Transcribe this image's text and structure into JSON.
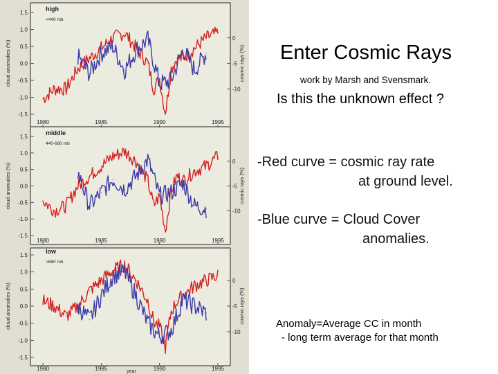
{
  "slide": {
    "title": "Enter Cosmic Rays",
    "credit": "work by Marsh and Svensmark.",
    "question": "Is this the unknown effect ?",
    "red_bullet": {
      "line1": "-Red curve = cosmic ray rate",
      "line2": "at ground level."
    },
    "blue_bullet": {
      "line1": "-Blue curve = Cloud Cover",
      "line2": "anomalies."
    },
    "note": {
      "line1": "Anomaly=Average CC in month",
      "line2": "- long term average for that month"
    }
  },
  "colors": {
    "cloud_series": "#3a3aa8",
    "cosmic_series": "#d42020",
    "panel_bg": "#ecebe0",
    "figure_bg": "#e1dfd1"
  },
  "chart_data": [
    {
      "type": "line",
      "panel": "high",
      "level": "<440 mb",
      "x_ticks": [
        "1980",
        "1985",
        "1990",
        "1995"
      ],
      "xlim": [
        1980,
        1995
      ],
      "ylabel": "cloud anomalies (%)",
      "y_ticks": [
        "1.5",
        "1.0",
        "0.5",
        "0.0",
        "-0.5",
        "-1.0",
        "-1.5"
      ],
      "ylim": [
        -1.5,
        1.5
      ],
      "y2label": "cosmic rays (%)",
      "y2_ticks": [
        "0",
        "-5",
        "-10"
      ],
      "y2lim": [
        -15,
        5
      ],
      "series": [
        {
          "axis": "right",
          "x": [
            1980,
            1981,
            1982,
            1983,
            1984,
            1985,
            1986,
            1987,
            1988,
            1989,
            1989.5,
            1990,
            1990.5,
            1991,
            1991.5,
            1992,
            1993,
            1994,
            1995
          ],
          "values": [
            -12,
            -10,
            -10,
            -6,
            -4,
            -2,
            0,
            1,
            -2,
            -5,
            -10,
            -8,
            -15,
            -6,
            -4,
            -4,
            -2,
            0,
            1
          ]
        },
        {
          "axis": "left",
          "x": [
            1983,
            1984,
            1985,
            1986,
            1987,
            1988,
            1989,
            1990,
            1991,
            1992,
            1993,
            1994
          ],
          "values": [
            0.2,
            -0.3,
            0.3,
            0.5,
            -0.2,
            0.4,
            0.7,
            -0.6,
            -0.5,
            0.4,
            -0.2,
            0.3
          ]
        }
      ]
    },
    {
      "type": "line",
      "panel": "middle",
      "level": "440-680 mb",
      "x_ticks": [
        "1980",
        "1985",
        "1990",
        "1995"
      ],
      "xlim": [
        1980,
        1995
      ],
      "ylabel": "cloud anomalies (%)",
      "y_ticks": [
        "1.5",
        "1.0",
        "0.5",
        "0.0",
        "-0.5",
        "-1.0",
        "-1.5"
      ],
      "ylim": [
        -1.5,
        1.5
      ],
      "y2label": "cosmic rays (%)",
      "y2_ticks": [
        "0",
        "-5",
        "-10"
      ],
      "y2lim": [
        -15,
        5
      ],
      "series": [
        {
          "axis": "right",
          "x": [
            1980,
            1981,
            1982,
            1983,
            1984,
            1985,
            1986,
            1987,
            1988,
            1989,
            1989.5,
            1990,
            1990.5,
            1991,
            1991.5,
            1992,
            1993,
            1994,
            1995
          ],
          "values": [
            -8,
            -10,
            -9,
            -5,
            -3,
            -1,
            1,
            2,
            0,
            -4,
            -9,
            -7,
            -14,
            -6,
            -3,
            -4,
            -2,
            -1,
            1
          ]
        },
        {
          "axis": "left",
          "x": [
            1983,
            1984,
            1985,
            1986,
            1987,
            1988,
            1989,
            1990,
            1991,
            1992,
            1993,
            1994
          ],
          "values": [
            0.4,
            -0.6,
            -0.2,
            0.2,
            -0.1,
            0.3,
            0.8,
            -0.3,
            -0.2,
            0.1,
            -0.6,
            -0.7
          ]
        }
      ]
    },
    {
      "type": "line",
      "panel": "low",
      "level": ">680 mb",
      "xlabel": "year",
      "x_ticks": [
        "1980",
        "1985",
        "1990",
        "1995"
      ],
      "xlim": [
        1980,
        1995
      ],
      "ylabel": "cloud anomalies (%)",
      "y_ticks": [
        "1.5",
        "1.0",
        "0.5",
        "0.0",
        "-0.5",
        "-1.0",
        "-1.5"
      ],
      "ylim": [
        -1.5,
        1.5
      ],
      "y2label": "cosmic rays (%)",
      "y2_ticks": [
        "0",
        "-5",
        "-10"
      ],
      "y2lim": [
        -15,
        5
      ],
      "series": [
        {
          "axis": "right",
          "x": [
            1980,
            1981,
            1982,
            1983,
            1984,
            1985,
            1986,
            1987,
            1988,
            1989,
            1989.5,
            1990,
            1990.5,
            1991,
            1991.5,
            1992,
            1993,
            1994,
            1995
          ],
          "values": [
            -4,
            -5,
            -7,
            -5,
            -2,
            0,
            2,
            3,
            0,
            -4,
            -8,
            -9,
            -13,
            -6,
            -4,
            -3,
            -1,
            0,
            1
          ]
        },
        {
          "axis": "left",
          "x": [
            1983,
            1984,
            1985,
            1986,
            1987,
            1988,
            1989,
            1990,
            1991,
            1992,
            1993,
            1994
          ],
          "values": [
            0.0,
            -0.4,
            0.3,
            0.9,
            1.0,
            0.3,
            -0.5,
            -0.9,
            -0.7,
            0.2,
            0.0,
            -0.2
          ]
        }
      ]
    }
  ]
}
